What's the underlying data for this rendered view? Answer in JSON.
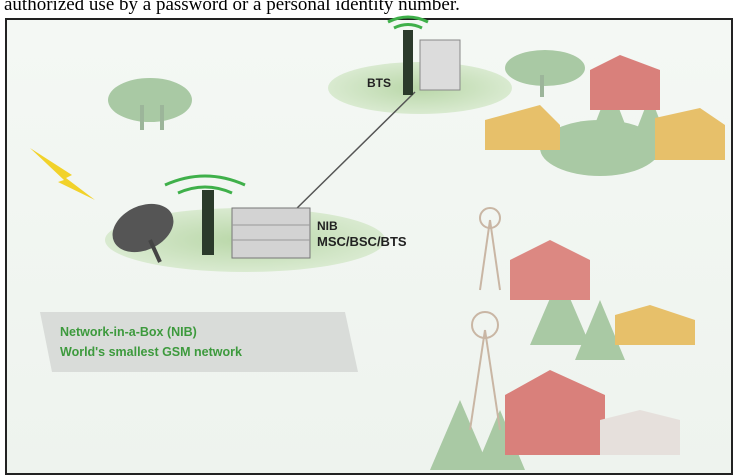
{
  "header": {
    "text": "authorized use by a password or a personal identity number."
  },
  "labels": {
    "bts": "BTS",
    "nib": "NIB",
    "nib_sub": "MSC/BSC/BTS"
  },
  "caption": {
    "line1": "Network-in-a-Box (NIB)",
    "line2": "World's smallest GSM network"
  }
}
